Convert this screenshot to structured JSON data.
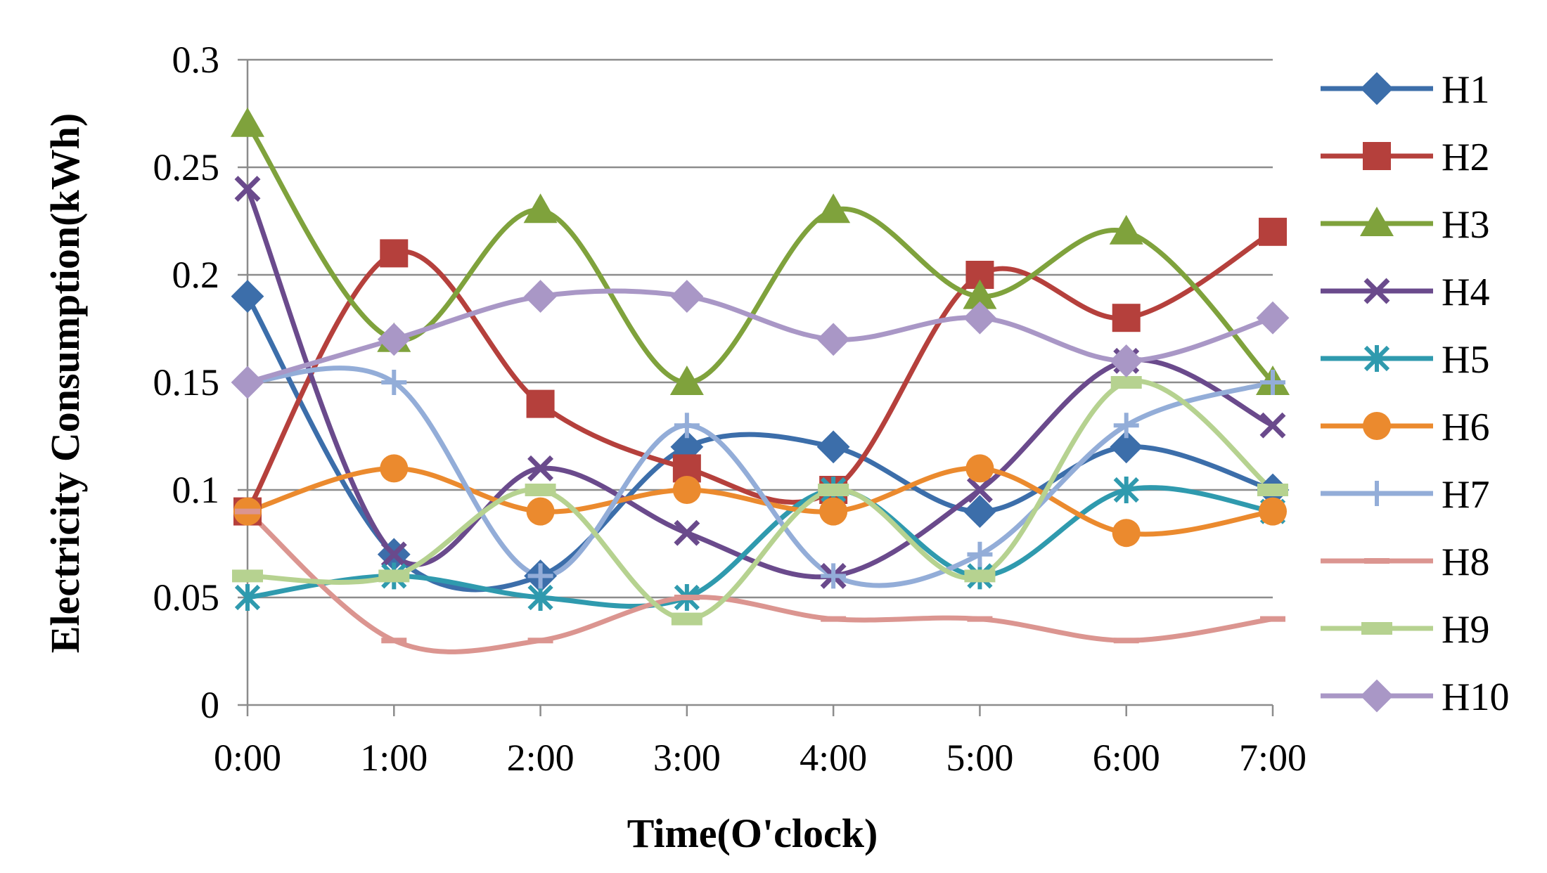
{
  "chart_data": {
    "type": "line",
    "title": "",
    "xlabel": "Time(O'clock)",
    "ylabel": "Electricity Consumption(kWh)",
    "categories": [
      "0:00",
      "1:00",
      "2:00",
      "3:00",
      "4:00",
      "5:00",
      "6:00",
      "7:00"
    ],
    "ylim": [
      0,
      0.3
    ],
    "yticks": [
      0,
      0.05,
      0.1,
      0.15,
      0.2,
      0.25,
      0.3
    ],
    "ytick_labels": [
      "0",
      "0.05",
      "0.1",
      "0.15",
      "0.2",
      "0.25",
      "0.3"
    ],
    "grid": true,
    "legend_position": "right",
    "series": [
      {
        "name": "H1",
        "color": "#3C6EAA",
        "marker": "diamond",
        "values": [
          0.19,
          0.07,
          0.06,
          0.12,
          0.12,
          0.09,
          0.12,
          0.1
        ]
      },
      {
        "name": "H2",
        "color": "#B5403C",
        "marker": "square",
        "values": [
          0.09,
          0.21,
          0.14,
          0.11,
          0.1,
          0.2,
          0.18,
          0.22
        ]
      },
      {
        "name": "H3",
        "color": "#7FA23C",
        "marker": "triangle",
        "values": [
          0.27,
          0.17,
          0.23,
          0.15,
          0.23,
          0.19,
          0.22,
          0.15
        ]
      },
      {
        "name": "H4",
        "color": "#6A4A8C",
        "marker": "x",
        "values": [
          0.24,
          0.07,
          0.11,
          0.08,
          0.06,
          0.1,
          0.16,
          0.13
        ]
      },
      {
        "name": "H5",
        "color": "#2F9AAE",
        "marker": "star",
        "values": [
          0.05,
          0.06,
          0.05,
          0.05,
          0.1,
          0.06,
          0.1,
          0.09
        ]
      },
      {
        "name": "H6",
        "color": "#EB8A2E",
        "marker": "circle",
        "values": [
          0.09,
          0.11,
          0.09,
          0.1,
          0.09,
          0.11,
          0.08,
          0.09
        ]
      },
      {
        "name": "H7",
        "color": "#93ADD8",
        "marker": "plus",
        "values": [
          0.15,
          0.15,
          0.06,
          0.13,
          0.06,
          0.07,
          0.13,
          0.15
        ]
      },
      {
        "name": "H8",
        "color": "#DB9590",
        "marker": "dash",
        "values": [
          0.09,
          0.03,
          0.03,
          0.05,
          0.04,
          0.04,
          0.03,
          0.04
        ]
      },
      {
        "name": "H9",
        "color": "#B6D290",
        "marker": "bar",
        "values": [
          0.06,
          0.06,
          0.1,
          0.04,
          0.1,
          0.06,
          0.15,
          0.1
        ]
      },
      {
        "name": "H10",
        "color": "#A997C6",
        "marker": "diamond",
        "values": [
          0.15,
          0.17,
          0.19,
          0.19,
          0.17,
          0.18,
          0.16,
          0.18
        ]
      }
    ]
  }
}
